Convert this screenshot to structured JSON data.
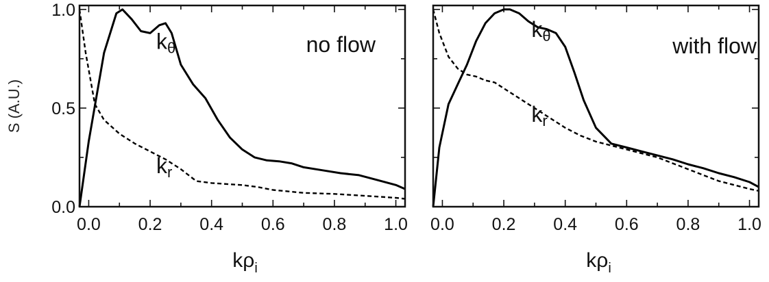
{
  "chart_data": [
    {
      "type": "line",
      "title": "",
      "xlabel": "kρ",
      "xlabel_sub": "i",
      "ylabel": "S (A.U.)",
      "xlim": [
        -0.03,
        1.03
      ],
      "ylim": [
        0.0,
        1.02
      ],
      "xticks": [
        0.0,
        0.2,
        0.4,
        0.6,
        0.8,
        1.0
      ],
      "xtick_labels": [
        "0.0",
        "0.2",
        "0.4",
        "0.6",
        "0.8",
        "1.0"
      ],
      "yticks": [
        0.0,
        0.5,
        1.0
      ],
      "ytick_labels": [
        "0.0",
        "0.5",
        "1.0"
      ],
      "panel_label": "no flow",
      "series": [
        {
          "style": "solid",
          "label_main": "k",
          "label_sub": "θ",
          "label_at": [
            0.22,
            0.8
          ],
          "x": [
            -0.03,
            0.0,
            0.05,
            0.09,
            0.11,
            0.14,
            0.17,
            0.2,
            0.23,
            0.25,
            0.27,
            0.3,
            0.34,
            0.38,
            0.42,
            0.46,
            0.5,
            0.54,
            0.58,
            0.62,
            0.66,
            0.7,
            0.76,
            0.82,
            0.88,
            0.94,
            1.0,
            1.03
          ],
          "y": [
            0.0,
            0.33,
            0.78,
            0.98,
            1.0,
            0.95,
            0.89,
            0.88,
            0.92,
            0.93,
            0.88,
            0.72,
            0.62,
            0.55,
            0.44,
            0.35,
            0.29,
            0.25,
            0.235,
            0.23,
            0.22,
            0.2,
            0.185,
            0.17,
            0.16,
            0.135,
            0.11,
            0.09
          ]
        },
        {
          "style": "dashed",
          "label_main": "k",
          "label_sub": "r",
          "label_at": [
            0.22,
            0.17
          ],
          "x": [
            -0.03,
            -0.01,
            0.02,
            0.05,
            0.1,
            0.15,
            0.2,
            0.25,
            0.3,
            0.35,
            0.4,
            0.45,
            0.5,
            0.55,
            0.6,
            0.7,
            0.8,
            0.9,
            1.0,
            1.03
          ],
          "y": [
            1.0,
            0.78,
            0.52,
            0.44,
            0.37,
            0.32,
            0.28,
            0.24,
            0.19,
            0.13,
            0.12,
            0.115,
            0.11,
            0.1,
            0.085,
            0.07,
            0.065,
            0.055,
            0.045,
            0.04
          ]
        }
      ]
    },
    {
      "type": "line",
      "title": "",
      "xlabel": "kρ",
      "xlabel_sub": "i",
      "ylabel": "",
      "xlim": [
        -0.03,
        1.03
      ],
      "ylim": [
        0.0,
        1.02
      ],
      "xticks": [
        0.0,
        0.2,
        0.4,
        0.6,
        0.8,
        1.0
      ],
      "xtick_labels": [
        "0.0",
        "0.2",
        "0.4",
        "0.6",
        "0.8",
        "1.0"
      ],
      "yticks": [
        0.0,
        0.5,
        1.0
      ],
      "ytick_labels": [],
      "panel_label": "with flow",
      "series": [
        {
          "style": "solid",
          "label_main": "k",
          "label_sub": "θ",
          "label_at": [
            0.29,
            0.86
          ],
          "x": [
            -0.03,
            -0.01,
            0.02,
            0.05,
            0.08,
            0.11,
            0.14,
            0.17,
            0.2,
            0.22,
            0.25,
            0.28,
            0.31,
            0.34,
            0.37,
            0.4,
            0.43,
            0.46,
            0.5,
            0.55,
            0.6,
            0.65,
            0.7,
            0.75,
            0.8,
            0.85,
            0.9,
            0.95,
            1.0,
            1.03
          ],
          "y": [
            0.0,
            0.3,
            0.52,
            0.62,
            0.72,
            0.84,
            0.93,
            0.98,
            1.0,
            1.0,
            0.98,
            0.94,
            0.91,
            0.9,
            0.88,
            0.81,
            0.68,
            0.54,
            0.4,
            0.32,
            0.3,
            0.28,
            0.26,
            0.24,
            0.215,
            0.195,
            0.17,
            0.15,
            0.125,
            0.1
          ]
        },
        {
          "style": "dashed",
          "label_main": "k",
          "label_sub": "r",
          "label_at": [
            0.29,
            0.43
          ],
          "x": [
            -0.03,
            -0.01,
            0.02,
            0.05,
            0.08,
            0.11,
            0.14,
            0.17,
            0.2,
            0.25,
            0.3,
            0.35,
            0.4,
            0.45,
            0.5,
            0.55,
            0.6,
            0.65,
            0.7,
            0.75,
            0.8,
            0.85,
            0.9,
            0.95,
            1.0,
            1.03
          ],
          "y": [
            1.0,
            0.88,
            0.76,
            0.7,
            0.67,
            0.66,
            0.64,
            0.63,
            0.6,
            0.55,
            0.5,
            0.45,
            0.4,
            0.36,
            0.33,
            0.31,
            0.29,
            0.27,
            0.25,
            0.22,
            0.19,
            0.16,
            0.13,
            0.11,
            0.09,
            0.08
          ]
        }
      ]
    }
  ]
}
